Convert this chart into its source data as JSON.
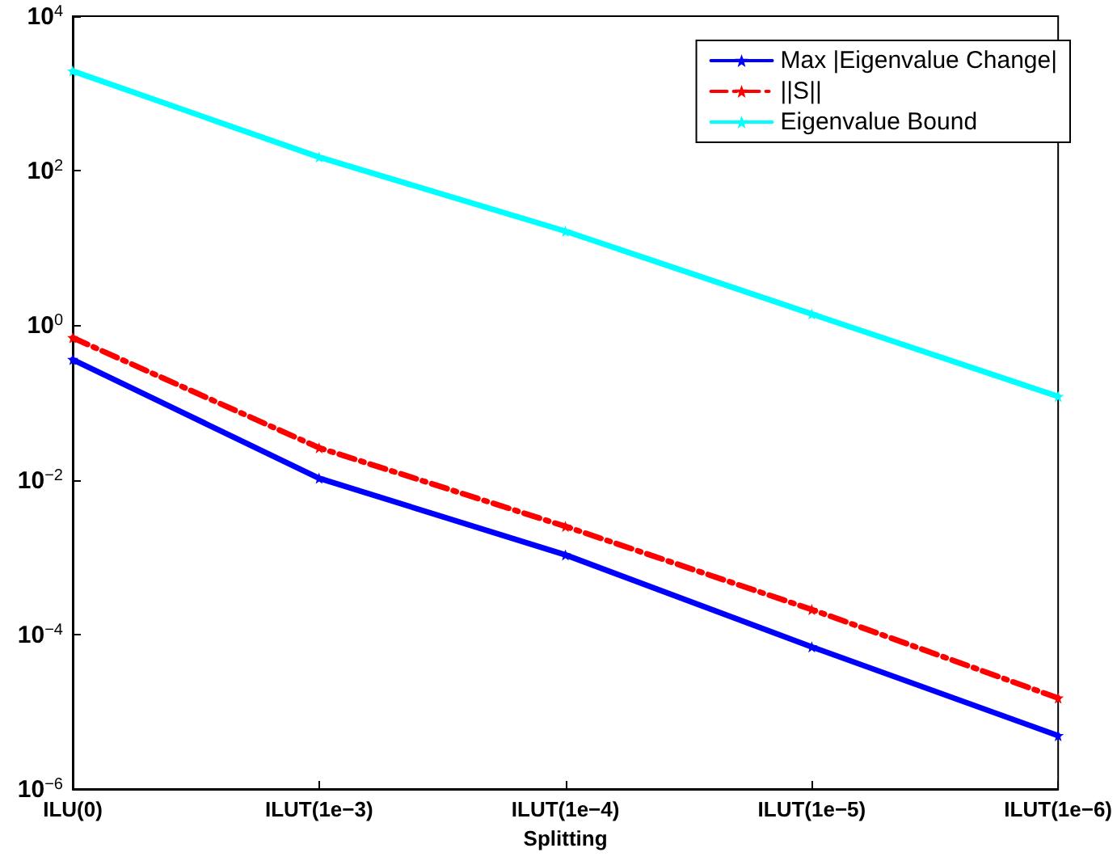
{
  "chart_data": {
    "type": "line",
    "xlabel": "Splitting",
    "categories": [
      "ILU(0)",
      "ILUT(1e−3)",
      "ILUT(1e−4)",
      "ILUT(1e−5)",
      "ILUT(1e−6)"
    ],
    "series": [
      {
        "name": "Max |Eigenvalue Change|",
        "color": "#0000ff",
        "line_style": "solid",
        "values": [
          0.36,
          0.0105,
          0.00107,
          6.9e-05,
          4.9e-06
        ]
      },
      {
        "name": "||S||",
        "color": "#ff0000",
        "line_style": "dashed",
        "values": [
          0.69,
          0.026,
          0.0025,
          0.00021,
          1.5e-05
        ]
      },
      {
        "name": "Eigenvalue Bound",
        "color": "#00ffff",
        "line_style": "solid",
        "values": [
          1950,
          150,
          16.5,
          1.4,
          0.12
        ]
      }
    ],
    "log": "y",
    "ylim": [
      1e-06,
      10000
    ],
    "yticks": [
      {
        "value": 1e-06,
        "label": "10$^{−6}$"
      },
      {
        "value": 0.0001,
        "label": "10$^{−4}$"
      },
      {
        "value": 0.01,
        "label": "10$^{−2}$"
      },
      {
        "value": 1,
        "label": "10$^{0}$"
      },
      {
        "value": 100,
        "label": "10$^{2}$"
      },
      {
        "value": 10000,
        "label": "10$^{4}$"
      }
    ],
    "grid": false,
    "legend": "top right",
    "marker": "star"
  }
}
